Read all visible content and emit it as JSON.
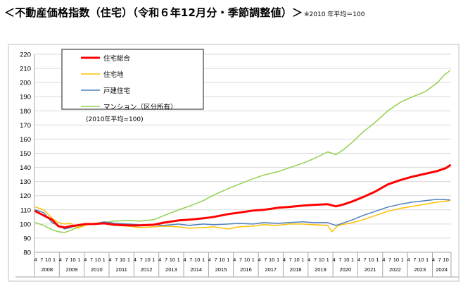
{
  "header": {
    "title": "＜不動産価格指数（住宅）（令和６年12月分・季節調整値）＞",
    "note": "※2010 年平均＝100"
  },
  "chart_data": {
    "type": "line",
    "title": "",
    "xlabel": "",
    "ylabel": "",
    "ylim": [
      80,
      220
    ],
    "yticks": [
      80,
      90,
      100,
      110,
      120,
      130,
      140,
      150,
      160,
      170,
      180,
      190,
      200,
      210,
      220
    ],
    "grid": true,
    "legend_position": "top-left",
    "baseline_note": "(2010年平均=100)",
    "years": [
      "2008",
      "2009",
      "2010",
      "2011",
      "2012",
      "2013",
      "2014",
      "2015",
      "2016",
      "2017",
      "2018",
      "2019",
      "2020",
      "2021",
      "2022",
      "2023",
      "2024"
    ],
    "month_labels": [
      "4",
      "7",
      "10",
      "1"
    ],
    "x_start": "2008-04",
    "x_end": "2024-12",
    "series": [
      {
        "name": "住宅総合",
        "color": "#ff0000",
        "width": 3,
        "points": [
          [
            "2008-04",
            109
          ],
          [
            "2008-08",
            106
          ],
          [
            "2008-12",
            103
          ],
          [
            "2009-03",
            98.5
          ],
          [
            "2009-06",
            97.5
          ],
          [
            "2009-09",
            98.5
          ],
          [
            "2009-12",
            99
          ],
          [
            "2010-04",
            100
          ],
          [
            "2010-08",
            100
          ],
          [
            "2011-01",
            100.5
          ],
          [
            "2011-06",
            99.5
          ],
          [
            "2012-01",
            99
          ],
          [
            "2012-06",
            99
          ],
          [
            "2013-01",
            99.5
          ],
          [
            "2013-06",
            101
          ],
          [
            "2014-01",
            102.5
          ],
          [
            "2014-06",
            103
          ],
          [
            "2015-01",
            104
          ],
          [
            "2015-06",
            105
          ],
          [
            "2016-01",
            107
          ],
          [
            "2016-06",
            108
          ],
          [
            "2017-01",
            109.5
          ],
          [
            "2017-06",
            110
          ],
          [
            "2018-01",
            111.5
          ],
          [
            "2018-06",
            112
          ],
          [
            "2019-01",
            113
          ],
          [
            "2019-06",
            113.5
          ],
          [
            "2020-01",
            114
          ],
          [
            "2020-05",
            112.5
          ],
          [
            "2020-09",
            114
          ],
          [
            "2021-01",
            116
          ],
          [
            "2021-06",
            119
          ],
          [
            "2021-12",
            123
          ],
          [
            "2022-06",
            128
          ],
          [
            "2022-12",
            131
          ],
          [
            "2023-06",
            133.5
          ],
          [
            "2023-12",
            135.5
          ],
          [
            "2024-06",
            137.5
          ],
          [
            "2024-10",
            139.5
          ],
          [
            "2024-12",
            141.5
          ]
        ]
      },
      {
        "name": "住宅地",
        "color": "#ffc000",
        "width": 1.5,
        "points": [
          [
            "2008-04",
            112
          ],
          [
            "2008-08",
            110
          ],
          [
            "2008-12",
            104
          ],
          [
            "2009-03",
            101
          ],
          [
            "2009-06",
            100
          ],
          [
            "2009-09",
            100.5
          ],
          [
            "2009-12",
            97
          ],
          [
            "2010-04",
            99
          ],
          [
            "2010-08",
            100.5
          ],
          [
            "2011-01",
            101
          ],
          [
            "2011-06",
            99
          ],
          [
            "2012-01",
            98.5
          ],
          [
            "2012-06",
            97.5
          ],
          [
            "2013-01",
            98
          ],
          [
            "2013-06",
            98.5
          ],
          [
            "2014-01",
            98
          ],
          [
            "2014-06",
            97
          ],
          [
            "2015-01",
            97.5
          ],
          [
            "2015-06",
            98
          ],
          [
            "2016-01",
            96.5
          ],
          [
            "2016-06",
            98
          ],
          [
            "2017-01",
            98.5
          ],
          [
            "2017-06",
            99.5
          ],
          [
            "2018-01",
            99
          ],
          [
            "2018-06",
            100
          ],
          [
            "2019-01",
            100
          ],
          [
            "2019-06",
            99.5
          ],
          [
            "2020-01",
            99
          ],
          [
            "2020-03",
            94.5
          ],
          [
            "2020-06",
            99
          ],
          [
            "2021-01",
            101
          ],
          [
            "2021-06",
            103
          ],
          [
            "2021-12",
            106
          ],
          [
            "2022-06",
            109
          ],
          [
            "2022-12",
            111
          ],
          [
            "2023-06",
            112.5
          ],
          [
            "2023-12",
            114
          ],
          [
            "2024-06",
            115.5
          ],
          [
            "2024-12",
            116.5
          ]
        ]
      },
      {
        "name": "戸建住宅",
        "color": "#4f81bd",
        "width": 1.5,
        "points": [
          [
            "2008-04",
            110
          ],
          [
            "2008-08",
            108
          ],
          [
            "2008-12",
            101
          ],
          [
            "2009-03",
            99
          ],
          [
            "2009-06",
            96.5
          ],
          [
            "2009-09",
            97.5
          ],
          [
            "2009-12",
            99
          ],
          [
            "2010-04",
            100
          ],
          [
            "2010-08",
            100
          ],
          [
            "2011-01",
            101.5
          ],
          [
            "2011-06",
            100.5
          ],
          [
            "2012-01",
            100
          ],
          [
            "2012-06",
            99.5
          ],
          [
            "2013-01",
            99.5
          ],
          [
            "2013-06",
            99
          ],
          [
            "2014-01",
            100
          ],
          [
            "2014-06",
            99
          ],
          [
            "2015-01",
            100
          ],
          [
            "2015-06",
            99.5
          ],
          [
            "2016-01",
            100
          ],
          [
            "2016-06",
            100.5
          ],
          [
            "2017-01",
            100
          ],
          [
            "2017-06",
            101
          ],
          [
            "2018-01",
            100.5
          ],
          [
            "2018-06",
            101
          ],
          [
            "2019-01",
            101.5
          ],
          [
            "2019-06",
            101
          ],
          [
            "2020-01",
            101
          ],
          [
            "2020-05",
            99
          ],
          [
            "2020-09",
            101
          ],
          [
            "2021-01",
            103
          ],
          [
            "2021-06",
            106
          ],
          [
            "2021-12",
            109
          ],
          [
            "2022-06",
            112
          ],
          [
            "2022-12",
            114
          ],
          [
            "2023-06",
            115.5
          ],
          [
            "2023-12",
            116.5
          ],
          [
            "2024-06",
            117.5
          ],
          [
            "2024-12",
            117
          ]
        ]
      },
      {
        "name": "マンション（区分所有）",
        "color": "#92d050",
        "width": 1.5,
        "points": [
          [
            "2008-04",
            101
          ],
          [
            "2008-08",
            99
          ],
          [
            "2008-12",
            96
          ],
          [
            "2009-03",
            94.5
          ],
          [
            "2009-06",
            94
          ],
          [
            "2009-09",
            95.5
          ],
          [
            "2009-12",
            97.5
          ],
          [
            "2010-04",
            99.5
          ],
          [
            "2010-08",
            100
          ],
          [
            "2011-01",
            101
          ],
          [
            "2011-06",
            102
          ],
          [
            "2012-01",
            102.5
          ],
          [
            "2012-06",
            102
          ],
          [
            "2013-01",
            103
          ],
          [
            "2013-06",
            106
          ],
          [
            "2014-01",
            110
          ],
          [
            "2014-06",
            112.5
          ],
          [
            "2015-01",
            116.5
          ],
          [
            "2015-06",
            120.5
          ],
          [
            "2016-01",
            125
          ],
          [
            "2016-06",
            128
          ],
          [
            "2017-01",
            132
          ],
          [
            "2017-06",
            134.5
          ],
          [
            "2018-01",
            137
          ],
          [
            "2018-06",
            139.5
          ],
          [
            "2019-01",
            143
          ],
          [
            "2019-06",
            146
          ],
          [
            "2020-01",
            151
          ],
          [
            "2020-05",
            149
          ],
          [
            "2020-09",
            153
          ],
          [
            "2021-01",
            158
          ],
          [
            "2021-06",
            165
          ],
          [
            "2021-12",
            172
          ],
          [
            "2022-06",
            180
          ],
          [
            "2022-12",
            186
          ],
          [
            "2023-06",
            190
          ],
          [
            "2023-12",
            193.5
          ],
          [
            "2024-06",
            200
          ],
          [
            "2024-09",
            205
          ],
          [
            "2024-12",
            208.5
          ]
        ]
      }
    ]
  }
}
